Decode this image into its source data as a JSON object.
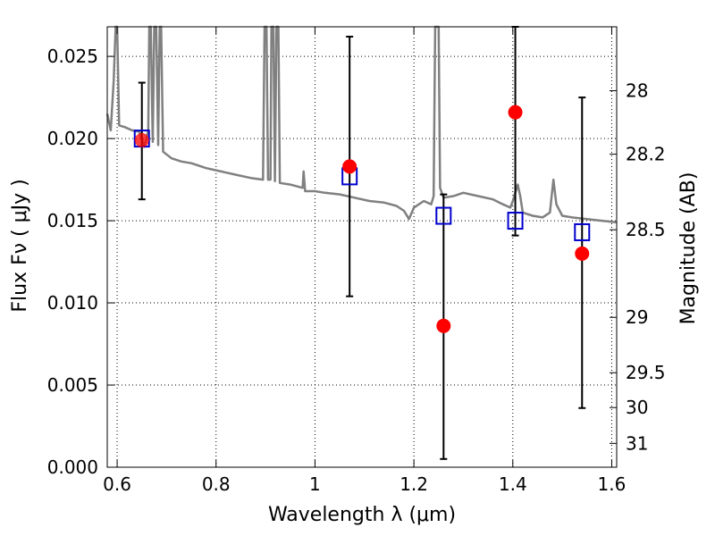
{
  "chart_data": {
    "type": "scatter",
    "xlabel": "Wavelength  λ (μm)",
    "ylabel": "Flux  Fν  ( μJy )",
    "y2label": "Magnitude (AB)",
    "xlim": [
      0.58,
      1.61
    ],
    "ylim": [
      0.0,
      0.0268
    ],
    "grid": true,
    "x_ticks": [
      0.6,
      0.8,
      1.0,
      1.2,
      1.4,
      1.6
    ],
    "x_tick_labels": [
      "0.6",
      "0.8",
      "1",
      "1.2",
      "1.4",
      "1.6"
    ],
    "y_ticks": [
      0.0,
      0.005,
      0.01,
      0.015,
      0.02,
      0.025
    ],
    "y_tick_labels": [
      "0.000",
      "0.005",
      "0.010",
      "0.015",
      "0.020",
      "0.025"
    ],
    "y2_ticks": [
      {
        "label": "28",
        "flux": 0.02291
      },
      {
        "label": "28.2",
        "flux": 0.01905
      },
      {
        "label": "28.5",
        "flux": 0.01445
      },
      {
        "label": "29",
        "flux": 0.00912
      },
      {
        "label": "29.5",
        "flux": 0.00575
      },
      {
        "label": "30",
        "flux": 0.00363
      },
      {
        "label": "31",
        "flux": 0.00145
      }
    ],
    "colors": {
      "model": "#808080",
      "observed": "#ff0000",
      "errorbar": "#000000",
      "synthetic": "#0000cc",
      "grid": "#000000"
    },
    "series": [
      {
        "marker": "circle",
        "points": [
          {
            "x": 0.65,
            "y": 0.0199,
            "err_low": 0.0163,
            "err_high": 0.0234
          },
          {
            "x": 1.07,
            "y": 0.0183,
            "err_low": 0.0104,
            "err_high": 0.0262
          },
          {
            "x": 1.26,
            "y": 0.0086,
            "err_low": 0.0005,
            "err_high": 0.0166
          },
          {
            "x": 1.405,
            "y": 0.0216,
            "err_low": 0.0141,
            "err_high": 0.0268
          },
          {
            "x": 1.54,
            "y": 0.013,
            "err_low": 0.0036,
            "err_high": 0.0225
          }
        ]
      },
      {
        "marker": "open-square",
        "points": [
          {
            "x": 0.65,
            "y": 0.02
          },
          {
            "x": 1.07,
            "y": 0.0177
          },
          {
            "x": 1.26,
            "y": 0.0153
          },
          {
            "x": 1.405,
            "y": 0.015
          },
          {
            "x": 1.54,
            "y": 0.0143
          }
        ]
      },
      {
        "marker": "line",
        "points": [
          {
            "x": 0.58,
            "y": 0.0215
          },
          {
            "x": 0.587,
            "y": 0.0205
          },
          {
            "x": 0.593,
            "y": 0.0235
          },
          {
            "x": 0.597,
            "y": 0.0268
          },
          {
            "x": 0.6,
            "y": 0.0268
          },
          {
            "x": 0.604,
            "y": 0.0208
          },
          {
            "x": 0.615,
            "y": 0.0207
          },
          {
            "x": 0.63,
            "y": 0.0205
          },
          {
            "x": 0.645,
            "y": 0.0204
          },
          {
            "x": 0.655,
            "y": 0.0195
          },
          {
            "x": 0.663,
            "y": 0.0205
          },
          {
            "x": 0.665,
            "y": 0.0268
          },
          {
            "x": 0.668,
            "y": 0.0268
          },
          {
            "x": 0.672,
            "y": 0.0198
          },
          {
            "x": 0.675,
            "y": 0.0268
          },
          {
            "x": 0.679,
            "y": 0.0268
          },
          {
            "x": 0.683,
            "y": 0.0196
          },
          {
            "x": 0.686,
            "y": 0.0268
          },
          {
            "x": 0.689,
            "y": 0.0268
          },
          {
            "x": 0.693,
            "y": 0.0192
          },
          {
            "x": 0.71,
            "y": 0.0188
          },
          {
            "x": 0.73,
            "y": 0.0186
          },
          {
            "x": 0.75,
            "y": 0.0185
          },
          {
            "x": 0.78,
            "y": 0.0182
          },
          {
            "x": 0.81,
            "y": 0.018
          },
          {
            "x": 0.84,
            "y": 0.0178
          },
          {
            "x": 0.87,
            "y": 0.0176
          },
          {
            "x": 0.895,
            "y": 0.0175
          },
          {
            "x": 0.898,
            "y": 0.0268
          },
          {
            "x": 0.902,
            "y": 0.0268
          },
          {
            "x": 0.905,
            "y": 0.0175
          },
          {
            "x": 0.91,
            "y": 0.0175
          },
          {
            "x": 0.912,
            "y": 0.0268
          },
          {
            "x": 0.916,
            "y": 0.0268
          },
          {
            "x": 0.919,
            "y": 0.0174
          },
          {
            "x": 0.922,
            "y": 0.0268
          },
          {
            "x": 0.926,
            "y": 0.0268
          },
          {
            "x": 0.929,
            "y": 0.0173
          },
          {
            "x": 0.95,
            "y": 0.0172
          },
          {
            "x": 0.975,
            "y": 0.017
          },
          {
            "x": 0.977,
            "y": 0.018
          },
          {
            "x": 0.98,
            "y": 0.0168
          },
          {
            "x": 1.0,
            "y": 0.0168
          },
          {
            "x": 1.02,
            "y": 0.0167
          },
          {
            "x": 1.05,
            "y": 0.0166
          },
          {
            "x": 1.08,
            "y": 0.0164
          },
          {
            "x": 1.11,
            "y": 0.0162
          },
          {
            "x": 1.14,
            "y": 0.0161
          },
          {
            "x": 1.165,
            "y": 0.0159
          },
          {
            "x": 1.18,
            "y": 0.0156
          },
          {
            "x": 1.19,
            "y": 0.0151
          },
          {
            "x": 1.2,
            "y": 0.0158
          },
          {
            "x": 1.22,
            "y": 0.0162
          },
          {
            "x": 1.235,
            "y": 0.016
          },
          {
            "x": 1.24,
            "y": 0.0165
          },
          {
            "x": 1.243,
            "y": 0.0268
          },
          {
            "x": 1.25,
            "y": 0.0268
          },
          {
            "x": 1.253,
            "y": 0.017
          },
          {
            "x": 1.26,
            "y": 0.0164
          },
          {
            "x": 1.28,
            "y": 0.0165
          },
          {
            "x": 1.3,
            "y": 0.0167
          },
          {
            "x": 1.33,
            "y": 0.0165
          },
          {
            "x": 1.36,
            "y": 0.0163
          },
          {
            "x": 1.38,
            "y": 0.016
          },
          {
            "x": 1.395,
            "y": 0.0158
          },
          {
            "x": 1.4,
            "y": 0.0162
          },
          {
            "x": 1.41,
            "y": 0.0172
          },
          {
            "x": 1.415,
            "y": 0.0165
          },
          {
            "x": 1.42,
            "y": 0.0155
          },
          {
            "x": 1.44,
            "y": 0.0153
          },
          {
            "x": 1.46,
            "y": 0.0152
          },
          {
            "x": 1.475,
            "y": 0.0155
          },
          {
            "x": 1.482,
            "y": 0.0175
          },
          {
            "x": 1.488,
            "y": 0.016
          },
          {
            "x": 1.5,
            "y": 0.0153
          },
          {
            "x": 1.52,
            "y": 0.0152
          },
          {
            "x": 1.55,
            "y": 0.0151
          },
          {
            "x": 1.58,
            "y": 0.015
          },
          {
            "x": 1.61,
            "y": 0.0149
          }
        ]
      }
    ]
  }
}
